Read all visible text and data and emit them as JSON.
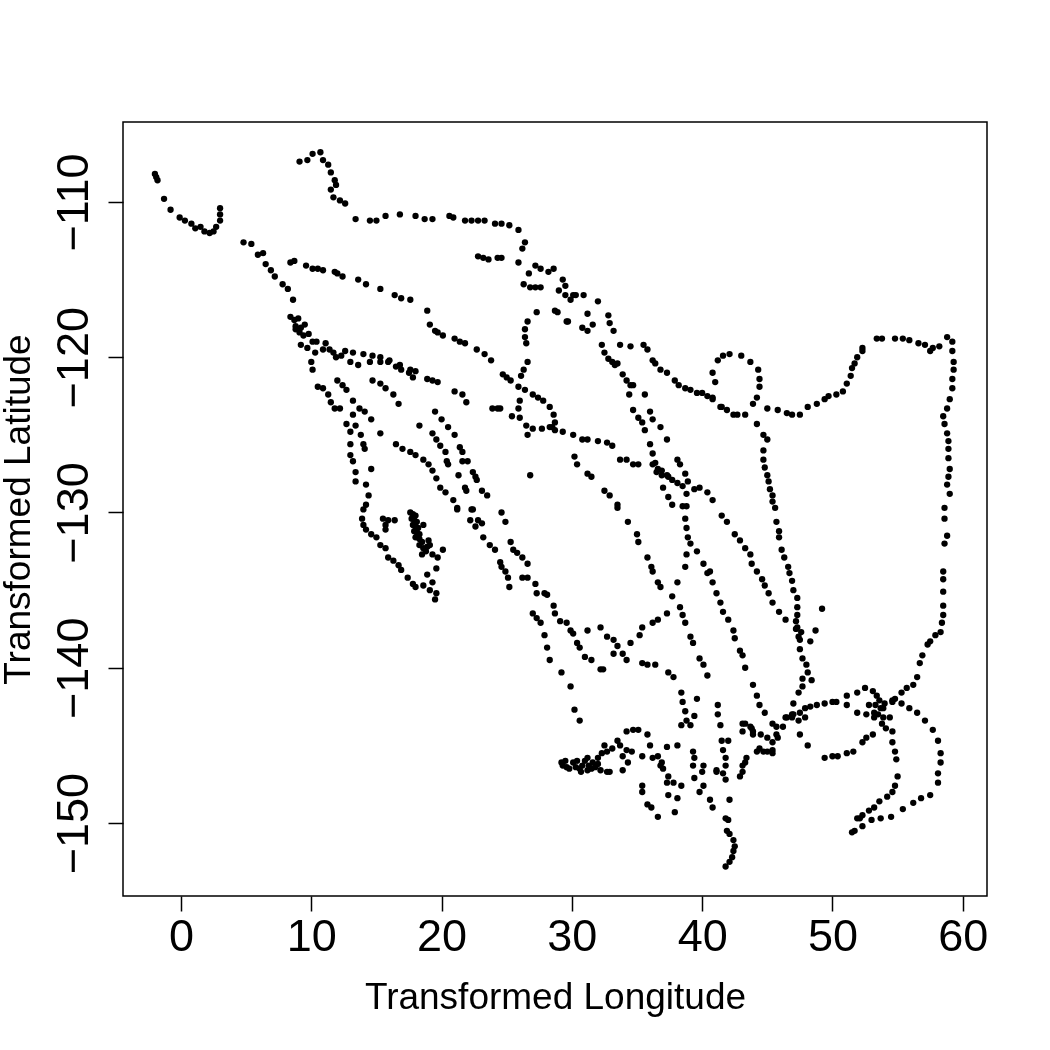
{
  "chart_data": {
    "type": "scatter",
    "xlabel": "Transformed Longitude",
    "ylabel": "Transformed Latitude",
    "marker": "circle",
    "xlim": [
      -4.45,
      61.86
    ],
    "ylim": [
      -154.7,
      -104.85
    ],
    "xticks": [
      0,
      10,
      20,
      30,
      40,
      50,
      60
    ],
    "yticks": [
      -150,
      -140,
      -130,
      -120,
      -110
    ],
    "series": [
      {
        "color": "#000000",
        "x": [
          -2.0,
          -1.9,
          -1.8,
          -1.3,
          -0.8,
          -0.1,
          0.3,
          0.8,
          1.1,
          1.5,
          1.8,
          2.2,
          2.5,
          2.7,
          3.0,
          3.0,
          3.0,
          4.8,
          5.4,
          5.9,
          6.3,
          6.5,
          6.9,
          7.2,
          7.8,
          8.2,
          8.6,
          8.4,
          8.7,
          9.0,
          8.8,
          9.2,
          9.5,
          9.1,
          9.8,
          9.1,
          9.7,
          10.1,
          10.7,
          10.9,
          11.3,
          11.5,
          11.8,
          11.9,
          11.5,
          11.7,
          12.2,
          12.6,
          13.4,
          14.5,
          15.0,
          15.7,
          16.8,
          18.0,
          18.7,
          19.3,
          20.6,
          20.9,
          21.8,
          22.3,
          22.8,
          23.3,
          24.1,
          24.6,
          25.2,
          25.9,
          26.4,
          26.2,
          25.9,
          26.7,
          26.3,
          26.8,
          27.2,
          27.6,
          27.2,
          27.6,
          28.2,
          28.6,
          29.3,
          29.5,
          29.0,
          29.5,
          29.9,
          30.1,
          30.3,
          30.9,
          32.0,
          28.7,
          28.9,
          29.6,
          29.7,
          30.8,
          31.2,
          31.2,
          31.6,
          32.8,
          32.9,
          33.2,
          22.8,
          23.2,
          23.6,
          24.3,
          24.6,
          8.4,
          8.7,
          9.6,
          10.1,
          10.5,
          10.9,
          11.8,
          12.0,
          12.4,
          13.6,
          14.2,
          15.3,
          16.4,
          16.9,
          17.6,
          18.9,
          19.1,
          19.5,
          19.7,
          20.1,
          21.0,
          21.4,
          21.8,
          22.7,
          23.3,
          23.8,
          24.7,
          25.0,
          25.3,
          25.9,
          26.4,
          27.0,
          27.4,
          27.8,
          28.3,
          28.6,
          28.7,
          28.5,
          28.7,
          29.3,
          30.1,
          30.8,
          31.2,
          32.0,
          32.7,
          33.1,
          27.3,
          26.6,
          26.4,
          26.4,
          26.5,
          26.6,
          26.3,
          26.1,
          26.0,
          25.9,
          25.4,
          26.0,
          26.5,
          26.6,
          27.0,
          27.7,
          28.3,
          23.9,
          24.3,
          24.5,
          26.8,
          8.8,
          9.4,
          10.1,
          10.9,
          11.7,
          12.6,
          13.2,
          14.0,
          14.7,
          15.3,
          16.0,
          16.8,
          17.6,
          18.0,
          18.9,
          19.3,
          19.7,
          21.0,
          21.6,
          21.9,
          9.2,
          9.7,
          10.3,
          10.4,
          11.1,
          11.4,
          11.9,
          12.3,
          13.0,
          13.6,
          14.5,
          15.3,
          15.9,
          16.5,
          16.9,
          17.5,
          17.8,
          10.0,
          10.1,
          14.7,
          15.3,
          15.7,
          16.3,
          16.7,
          12.0,
          12.4,
          12.7,
          13.2,
          13.7,
          14.1,
          14.6,
          15.3,
          16.5,
          17.0,
          17.6,
          18.0,
          10.5,
          10.9,
          11.3,
          11.5,
          11.8,
          12.2,
          12.7,
          13.0,
          13.0,
          13.0,
          13.2,
          13.4,
          13.4,
          14.2,
          14.4,
          14.2,
          13.2,
          13.4,
          13.8,
          14.0,
          14.1,
          14.6,
          18.3,
          18.6,
          19.0,
          19.3,
          19.6,
          19.9,
          20.3,
          20.9,
          21.2,
          19.3,
          19.6,
          19.9,
          20.3,
          20.4,
          20.5,
          19.5,
          20.0,
          20.5,
          21.0,
          21.4,
          21.6,
          21.6,
          22.0,
          22.4,
          22.6,
          22.7,
          23.1,
          23.5,
          21.3,
          21.8,
          21.9,
          22.3,
          14.0,
          13.9,
          14.0,
          14.2,
          14.6,
          15.0,
          15.3,
          15.7,
          15.9,
          16.3,
          16.7,
          16.9,
          17.4,
          17.8,
          18.0,
          15.5,
          15.9,
          16.4,
          15.7,
          15.7,
          17.6,
          17.8,
          18.0,
          17.7,
          17.9,
          18.1,
          17.8,
          18.0,
          18.2,
          17.9,
          18.1,
          18.3,
          18.0,
          18.3,
          18.5,
          18.3,
          18.6,
          18.8,
          18.5,
          18.9,
          19.0,
          18.6,
          19.1,
          19.3,
          19.7,
          20.1,
          19.6,
          18.9,
          18.6,
          19.3,
          19.1,
          19.6,
          19.5,
          21.2,
          22.4,
          22.2,
          22.6,
          23.1,
          22.8,
          23.2,
          23.7,
          24.1,
          24.5,
          24.6,
          24.9,
          25.1,
          25.2,
          24.6,
          24.9,
          25.3,
          25.5,
          25.8,
          26.2,
          26.6,
          26.2,
          26.6,
          27.2,
          27.3,
          27.9,
          28.1,
          28.6,
          28.7,
          29.1,
          29.6,
          29.9,
          30.1,
          30.4,
          30.6,
          31.0,
          31.5,
          32.2,
          32.4,
          31.2,
          32.2,
          32.7,
          33.2,
          33.5,
          33.2,
          33.9,
          34.2,
          34.5,
          35.2,
          35.4,
          36.2,
          36.6,
          37.3,
          35.4,
          35.8,
          36.4,
          37.4,
          37.8,
          38.4,
          38.5,
          38.7,
          38.8,
          39.1,
          38.4,
          39.6,
          39.4,
          27.0,
          27.3,
          27.6,
          27.9,
          28.1,
          28.3,
          29.2,
          29.9,
          30.2,
          30.6,
          29.2,
          29.6,
          30.1,
          30.6,
          31.2,
          31.5,
          31.6,
          32.0,
          32.3,
          32.7,
          32.5,
          33.1,
          33.5,
          33.7,
          34.2,
          34.6,
          33.9,
          34.3,
          32.7,
          32.9,
          33.9,
          35.1,
          34.7,
          34.2,
          35.8,
          36.0,
          35.4,
          36.2,
          36.6,
          36.9,
          37.0,
          37.4,
          37.3,
          37.8,
          38.4,
          37.4,
          38.1,
          35.4,
          35.4,
          35.8,
          36.1,
          36.6,
          37.9,
          36.8,
          37.3,
          38.1,
          39.3,
          39.4,
          39.3,
          40.1,
          40.0,
          39.4,
          40.1,
          39.8,
          40.6,
          40.8,
          41.1,
          29.3,
          29.5,
          29.8,
          30.3,
          30.4,
          30.8,
          31.0,
          31.3,
          31.8,
          31.2,
          32.0,
          32.2,
          30.7,
          40.8,
          41.0,
          41.2,
          41.6,
          42.1,
          43.0,
          43.7,
          44.3,
          44.4,
          44.4,
          44.2,
          43.9,
          43.3,
          42.7,
          42.4,
          41.9,
          41.5,
          40.8,
          45.0,
          45.8,
          46.5,
          46.9,
          47.5,
          48.1,
          48.8,
          49.4,
          49.7,
          50.3,
          50.8,
          51.1,
          51.4,
          51.5,
          51.7,
          51.9,
          52.3,
          52.3,
          53.4,
          53.8,
          54.8,
          55.4,
          55.9,
          56.6,
          57.1,
          57.5,
          57.7,
          58.2,
          58.8,
          59.2,
          59.2,
          59.3,
          59.3,
          59.2,
          59.2,
          59.0,
          58.8,
          58.5,
          58.6,
          58.8,
          58.9,
          58.9,
          58.9,
          59.0,
          58.9,
          58.8,
          59.0,
          58.6,
          44.2,
          44.7,
          45.0,
          44.7,
          44.7,
          44.8,
          45.0,
          45.1,
          45.2,
          45.4,
          45.4,
          45.6,
          45.7,
          45.9,
          45.9,
          46.1,
          46.3,
          46.6,
          46.7,
          46.9,
          47.0,
          47.3,
          47.3,
          47.3,
          47.2,
          47.3,
          47.6,
          47.5,
          47.5,
          47.7,
          48.0,
          48.1,
          47.7,
          47.7,
          47.4,
          47.0,
          42.5,
          42.9,
          43.3,
          43.7,
          43.8,
          44.2,
          44.6,
          44.8,
          45.1,
          45.4,
          45.9,
          46.4,
          47.2,
          47.4,
          40.8,
          41.1,
          41.4,
          41.6,
          42.0,
          42.4,
          42.5,
          42.9,
          43.1,
          43.3,
          48.3,
          48.7,
          49.2,
          48.4,
          58.6,
          58.8,
          58.6,
          58.5,
          58.5,
          58.5,
          58.5,
          58.5,
          58.4,
          58.3,
          57.9,
          57.5,
          57.3,
          56.9,
          56.7,
          56.5,
          56.2,
          55.7,
          55.3,
          54.8,
          54.6,
          53.1,
          53.4,
          53.6,
          53.3,
          53.7,
          54.0,
          53.5,
          53.9,
          53.8,
          54.1,
          53.2,
          52.8,
          52.5,
          51.9,
          51.1,
          50.3,
          50.0,
          49.4,
          48.8,
          48.3,
          47.9,
          47.5,
          46.9,
          46.4,
          51.1,
          51.9,
          52.6,
          53.2,
          53.9,
          54.6,
          55.3,
          55.9,
          56.5,
          57.1,
          57.7,
          58.1,
          58.3,
          58.3,
          58.1,
          58.1,
          57.5,
          56.8,
          56.2,
          55.4,
          54.5,
          53.7,
          53.0,
          52.3,
          51.9,
          51.7,
          51.5,
          54.4,
          54.6,
          54.6,
          54.8,
          54.9,
          55.0,
          54.8,
          54.6,
          54.2,
          53.6,
          53.2,
          52.8,
          52.3,
          52.1,
          53.1,
          52.6,
          52.3,
          51.6,
          51.1,
          50.4,
          50.0,
          49.4,
          47.9,
          47.4,
          46.9,
          46.5,
          46.2,
          45.7,
          45.4,
          45.0,
          44.5,
          43.9,
          43.7,
          43.1,
          45.4,
          44.7,
          44.2,
          43.3,
          43.1,
          42.9,
          47.5,
          48.1,
          47.0,
          41.2,
          41.2,
          41.4,
          41.5,
          42.0,
          41.6,
          41.8,
          41.8,
          41.6,
          41.1,
          41.8,
          42.1,
          41.8,
          42.0,
          41.9,
          42.1,
          42.4,
          42.5,
          42.4,
          42.3,
          42.1,
          41.8,
          38.5,
          38.7,
          38.8,
          38.9,
          39.1,
          38.8,
          38.7,
          38.1,
          37.7,
          39.6,
          40.1,
          40.4,
          33.5,
          34.3,
          35.0,
          35.1,
          35.8,
          36.1,
          36.2,
          36.6,
          36.8,
          38.3,
          38.5,
          38.7,
          39.1,
          39.3,
          39.8,
          40.1,
          40.4,
          32.3,
          32.5,
          32.8,
          33.1,
          33.3,
          33.5,
          33.9,
          34.2,
          34.5,
          34.7,
          34.4,
          34.7,
          35.1,
          35.4,
          35.6,
          36.0,
          36.2,
          36.4,
          36.6,
          36.9,
          37.3,
          37.7,
          38.1,
          38.5,
          38.8,
          38.8,
          33.7,
          34.5,
          35.5,
          35.8,
          36.2,
          36.4,
          36.8,
          37.3,
          37.9,
          38.2,
          38.7,
          39.1,
          39.6,
          40.0,
          40.4,
          40.8,
          41.4,
          35.6,
          36.0,
          36.2,
          36.8,
          37.3,
          38.1,
          38.3,
          38.7,
          38.9,
          39.4,
          39.8,
          40.4,
          40.8,
          36.2,
          36.5,
          36.9,
          37.4,
          37.0,
          37.4,
          37.7,
          30.2,
          30.4,
          31.2,
          31.5,
          32.5,
          32.9,
          33.5,
          33.7,
          34.2,
          34.7,
          35.1,
          41.5,
          41.9,
          40.6,
          43.9,
          44.2,
          44.4,
          44.8,
          45.4,
          45.7,
          45.8,
          45.4,
          45.0,
          44.4,
          43.9,
          43.8,
          43.3,
          43.1,
          43.4,
          43.1
        ],
        "values": [
          -108.2,
          -108.4,
          -108.6,
          -109.8,
          -110.5,
          -111.0,
          -111.2,
          -111.4,
          -111.7,
          -111.6,
          -111.9,
          -112.0,
          -111.9,
          -111.6,
          -111.2,
          -110.8,
          -110.4,
          -112.6,
          -112.7,
          -113.4,
          -113.3,
          -114.0,
          -114.4,
          -114.8,
          -115.3,
          -115.6,
          -116.3,
          -117.4,
          -117.6,
          -117.5,
          -118.0,
          -118.1,
          -117.9,
          -118.4,
          -118.5,
          -107.4,
          -107.3,
          -106.9,
          -106.8,
          -107.3,
          -107.6,
          -108.1,
          -108.6,
          -108.9,
          -109.2,
          -109.7,
          -109.9,
          -110.1,
          -111.1,
          -111.2,
          -111.2,
          -110.9,
          -110.8,
          -110.9,
          -111.1,
          -111.1,
          -110.9,
          -111.0,
          -111.2,
          -111.2,
          -111.2,
          -111.2,
          -111.4,
          -111.4,
          -111.5,
          -111.8,
          -112.6,
          -113.0,
          -113.9,
          -114.6,
          -115.3,
          -115.5,
          -115.5,
          -115.5,
          -114.1,
          -114.3,
          -114.5,
          -114.3,
          -115.0,
          -115.4,
          -115.7,
          -116.0,
          -116.3,
          -116.0,
          -116.0,
          -116.0,
          -116.4,
          -117.0,
          -117.1,
          -117.7,
          -117.7,
          -118.1,
          -118.3,
          -117.2,
          -117.9,
          -117.3,
          -117.8,
          -118.3,
          -113.5,
          -113.6,
          -113.7,
          -113.6,
          -113.6,
          -113.9,
          -113.8,
          -114.1,
          -114.3,
          -114.3,
          -114.4,
          -114.5,
          -114.6,
          -114.8,
          -115.0,
          -115.3,
          -115.6,
          -116.0,
          -116.2,
          -116.3,
          -117.0,
          -117.9,
          -118.3,
          -118.4,
          -118.6,
          -118.8,
          -119.0,
          -119.1,
          -119.5,
          -119.8,
          -120.2,
          -121.1,
          -121.3,
          -121.5,
          -121.9,
          -122.1,
          -122.4,
          -122.6,
          -122.8,
          -123.2,
          -123.7,
          -124.2,
          -124.5,
          -124.7,
          -124.8,
          -125.0,
          -125.3,
          -125.3,
          -125.4,
          -125.5,
          -125.7,
          -117.1,
          -117.7,
          -118.2,
          -118.7,
          -119.1,
          -120.3,
          -120.8,
          -121.2,
          -122.8,
          -123.3,
          -123.8,
          -123.9,
          -124.4,
          -125.0,
          -124.6,
          -124.6,
          -124.5,
          -123.3,
          -123.3,
          -123.3,
          -127.6,
          -118.2,
          -118.6,
          -119.0,
          -119.5,
          -119.7,
          -119.6,
          -119.7,
          -119.8,
          -119.9,
          -120.0,
          -120.2,
          -120.5,
          -120.8,
          -120.9,
          -121.4,
          -121.5,
          -121.6,
          -122.2,
          -122.4,
          -122.9,
          -119.2,
          -119.4,
          -119.7,
          -119.0,
          -119.1,
          -119.5,
          -120.0,
          -119.9,
          -120.3,
          -120.5,
          -120.3,
          -120.3,
          -120.3,
          -120.6,
          -120.8,
          -121.0,
          -121.3,
          -120.3,
          -120.8,
          -121.5,
          -121.7,
          -122.0,
          -122.4,
          -123.0,
          -121.5,
          -121.8,
          -122.1,
          -122.8,
          -123.3,
          -123.5,
          -124.0,
          -124.9,
          -125.6,
          -125.9,
          -126.1,
          -126.3,
          -121.9,
          -122.0,
          -122.4,
          -122.9,
          -123.3,
          -123.3,
          -124.3,
          -124.8,
          -125.6,
          -126.3,
          -126.7,
          -127.4,
          -128.0,
          -128.2,
          -128.9,
          -129.5,
          -123.7,
          -124.4,
          -125.0,
          -125.6,
          -125.9,
          -127.2,
          -124.4,
          -126.6,
          -126.9,
          -127.3,
          -127.8,
          -128.4,
          -128.7,
          -129.2,
          -129.8,
          -124.9,
          -125.3,
          -125.7,
          -126.1,
          -126.7,
          -126.9,
          -123.5,
          -124.0,
          -124.5,
          -125.0,
          -125.8,
          -126.1,
          -126.7,
          -126.7,
          -127.4,
          -127.7,
          -127.9,
          -128.6,
          -128.9,
          -127.6,
          -128.4,
          -128.6,
          -129.8,
          -129.8,
          -130.4,
          -130.8,
          -131.1,
          -131.4,
          -131.6,
          -132.1,
          -132.3,
          -132.9,
          -133.1,
          -133.4,
          -133.7,
          -134.2,
          -134.6,
          -134.8,
          -130.4,
          -130.5,
          -130.5,
          -131.1,
          -130.8,
          -130.0,
          -130.1,
          -130.2,
          -130.4,
          -130.5,
          -130.6,
          -130.8,
          -130.9,
          -131.0,
          -131.2,
          -131.3,
          -131.4,
          -131.6,
          -131.7,
          -131.9,
          -132.1,
          -132.3,
          -132.5,
          -132.7,
          -132.2,
          -131.8,
          -130.8,
          -132.1,
          -132.7,
          -132.9,
          -132.4,
          -133.6,
          -134.0,
          -134.7,
          -134.5,
          -135.0,
          -135.2,
          -135.6,
          -129.7,
          -129.8,
          -130.5,
          -130.9,
          -130.7,
          -130.5,
          -131.6,
          -132.1,
          -132.4,
          -133.2,
          -133.5,
          -133.8,
          -134.2,
          -134.8,
          -130.0,
          -130.6,
          -131.9,
          -132.4,
          -132.6,
          -132.9,
          -133.3,
          -134.2,
          -134.2,
          -134.6,
          -135.2,
          -135.2,
          -135.3,
          -136.0,
          -136.5,
          -137.0,
          -137.1,
          -137.6,
          -137.8,
          -138.4,
          -138.7,
          -139.3,
          -139.5,
          -140.1,
          -140.1,
          -137.6,
          -137.4,
          -138.0,
          -138.2,
          -138.6,
          -139.1,
          -139.1,
          -139.5,
          -138.4,
          -137.9,
          -137.4,
          -137.1,
          -136.9,
          -136.5,
          -139.7,
          -139.8,
          -139.8,
          -140.3,
          -140.6,
          -141.6,
          -142.2,
          -142.8,
          -143.4,
          -143.7,
          -143.7,
          -142.0,
          -143.1,
          -136.5,
          -136.8,
          -137.1,
          -137.9,
          -138.7,
          -139.5,
          -140.3,
          -141.2,
          -142.7,
          -143.4,
          -146.1,
          -146.4,
          -146.1,
          -146.5,
          -146.6,
          -146.5,
          -146.1,
          -145.8,
          -145.5,
          -145.4,
          -145.0,
          -145.2,
          -144.7,
          -145.0,
          -145.3,
          -145.4,
          -145.7,
          -146.1,
          -146.7,
          -146.7,
          -146.6,
          -144.0,
          -144.0,
          -144.1,
          -144.3,
          -145.0,
          -145.7,
          -145.8,
          -145.7,
          -146.1,
          -146.5,
          -147.0,
          -147.4,
          -147.4,
          -147.6,
          -148.2,
          -148.4,
          -147.6,
          -148.0,
          -148.8,
          -149.0,
          -149.6,
          -149.3,
          -146.3,
          -145.1,
          -145.0,
          -145.4,
          -145.8,
          -146.3,
          -146.3,
          -146.7,
          -147.1,
          -147.6,
          -148.0,
          -148.5,
          -149.0,
          -146.6,
          -146.3,
          -146.0,
          -146.5,
          -146.4,
          -146.0,
          -146.3,
          -146.0,
          -146.3,
          -146.4,
          -145.8,
          -146.2,
          -146.6,
          -146.7,
          -121.0,
          -121.6,
          -120.2,
          -119.9,
          -119.8,
          -119.9,
          -120.3,
          -120.8,
          -121.4,
          -121.9,
          -122.6,
          -123.0,
          -123.7,
          -123.7,
          -123.7,
          -123.4,
          -123.2,
          -122.6,
          -123.3,
          -123.4,
          -123.6,
          -123.7,
          -123.7,
          -123.2,
          -123.0,
          -122.7,
          -122.5,
          -122.4,
          -122.2,
          -121.7,
          -121.2,
          -120.7,
          -120.4,
          -120.0,
          -119.6,
          -119.4,
          -118.8,
          -118.8,
          -118.8,
          -118.8,
          -118.9,
          -119.1,
          -119.2,
          -119.6,
          -119.4,
          -119.3,
          -118.7,
          -119.0,
          -119.6,
          -120.3,
          -120.8,
          -121.4,
          -122.0,
          -122.7,
          -123.3,
          -123.8,
          -124.3,
          -124.9,
          -125.4,
          -125.9,
          -126.5,
          -127.2,
          -127.7,
          -128.2,
          -128.8,
          -129.7,
          -124.3,
          -125.0,
          -125.3,
          -126.0,
          -126.6,
          -127.1,
          -127.6,
          -128.0,
          -128.5,
          -128.9,
          -129.3,
          -129.7,
          -130.6,
          -131.2,
          -131.6,
          -132.4,
          -132.9,
          -133.5,
          -133.9,
          -134.4,
          -135.0,
          -135.5,
          -136.1,
          -136.6,
          -137.0,
          -137.4,
          -137.7,
          -138.2,
          -138.8,
          -139.4,
          -139.8,
          -140.3,
          -140.7,
          -141.2,
          -141.6,
          -142.3,
          -131.4,
          -131.8,
          -132.3,
          -132.7,
          -133.3,
          -133.8,
          -134.3,
          -134.7,
          -135.2,
          -135.8,
          -136.4,
          -136.9,
          -137.5,
          -138.0,
          -134.5,
          -135.2,
          -135.8,
          -136.4,
          -136.9,
          -137.6,
          -138.1,
          -138.9,
          -139.2,
          -140.0,
          -138.3,
          -137.6,
          -136.2,
          -140.8,
          -130.4,
          -131.5,
          -132.0,
          -133.8,
          -134.3,
          -135.1,
          -136.0,
          -136.6,
          -137.1,
          -137.7,
          -137.9,
          -138.3,
          -138.5,
          -139.2,
          -139.7,
          -140.6,
          -141.1,
          -141.3,
          -141.6,
          -142.0,
          -142.2,
          -141.5,
          -141.8,
          -142.1,
          -142.4,
          -142.6,
          -142.3,
          -143.0,
          -143.2,
          -143.6,
          -143.9,
          -142.9,
          -142.4,
          -141.3,
          -141.6,
          -141.8,
          -142.2,
          -142.2,
          -142.3,
          -142.4,
          -142.5,
          -142.6,
          -142.9,
          -143.0,
          -143.2,
          -142.4,
          -142.9,
          -143.0,
          -143.2,
          -142.6,
          -142.1,
          -142.3,
          -142.6,
          -142.9,
          -143.4,
          -144.0,
          -144.7,
          -145.5,
          -146.1,
          -146.8,
          -147.4,
          -148.2,
          -148.4,
          -148.7,
          -149.1,
          -149.6,
          -149.7,
          -149.8,
          -150.2,
          -149.7,
          -150.5,
          -150.6,
          -143.2,
          -144.1,
          -144.8,
          -145.4,
          -145.9,
          -147.0,
          -147.6,
          -148.0,
          -148.3,
          -148.6,
          -149.0,
          -149.2,
          -149.5,
          -149.7,
          -144.3,
          -144.5,
          -144.8,
          -145.4,
          -145.5,
          -145.7,
          -145.7,
          -145.8,
          -143.2,
          -143.4,
          -143.2,
          -143.2,
          -143.8,
          -144.3,
          -144.8,
          -144.5,
          -144.3,
          -144.1,
          -143.8,
          -143.6,
          -145.5,
          -145.4,
          -145.4,
          -146.1,
          -146.7,
          -147.0,
          -144.3,
          -145.0,
          -143.0,
          -142.4,
          -143.0,
          -143.7,
          -144.7,
          -144.7,
          -145.3,
          -145.8,
          -146.3,
          -146.8,
          -146.7,
          -147.2,
          -148.5,
          -149.7,
          -149.8,
          -150.5,
          -150.7,
          -151.1,
          -151.5,
          -151.8,
          -152.2,
          -152.5,
          -152.8,
          -129.6,
          -130.4,
          -131.0,
          -131.6,
          -132.0,
          -132.7,
          -133.5,
          -134.5,
          -135.4,
          -132.5,
          -133.3,
          -133.9,
          -129.7,
          -130.6,
          -131.4,
          -131.9,
          -132.9,
          -133.5,
          -133.8,
          -134.5,
          -134.8,
          -136.1,
          -136.6,
          -137.1,
          -138.0,
          -138.4,
          -139.4,
          -139.8,
          -140.5,
          -119.2,
          -119.7,
          -120.1,
          -120.3,
          -120.5,
          -120.4,
          -121.1,
          -121.5,
          -121.8,
          -121.8,
          -122.4,
          -123.4,
          -123.9,
          -124.2,
          -124.7,
          -125.6,
          -126.2,
          -126.8,
          -127.2,
          -127.3,
          -127.6,
          -127.9,
          -128.1,
          -128.3,
          -128.8,
          -129.6,
          -119.2,
          -119.3,
          -119.2,
          -119.5,
          -120.2,
          -120.4,
          -120.8,
          -121.0,
          -121.5,
          -121.8,
          -122.0,
          -122.1,
          -122.3,
          -122.3,
          -122.5,
          -122.7,
          -123.2,
          -122.4,
          -123.5,
          -124.0,
          -124.5,
          -125.3,
          -126.6,
          -126.9,
          -127.5,
          -128.0,
          -128.5,
          -128.4,
          -128.7,
          -129.2,
          -126.9,
          -127.4,
          -127.6,
          -127.7,
          -128.4,
          -129.0,
          -129.5,
          -126.4,
          -126.9,
          -127.5,
          -127.7,
          -128.6,
          -128.9,
          -129.5,
          -126.6,
          -126.6,
          -126.9,
          -126.9,
          -130.2,
          -130.6,
          -133.8,
          -141.1,
          -141.8,
          -142.4,
          -142.9,
          -143.6,
          -143.8,
          -144.5,
          -145.3,
          -145.4,
          -145.2,
          -144.3,
          -143.9,
          -143.6,
          -144.1,
          -145.8,
          -146.3
        ]
      }
    ]
  }
}
